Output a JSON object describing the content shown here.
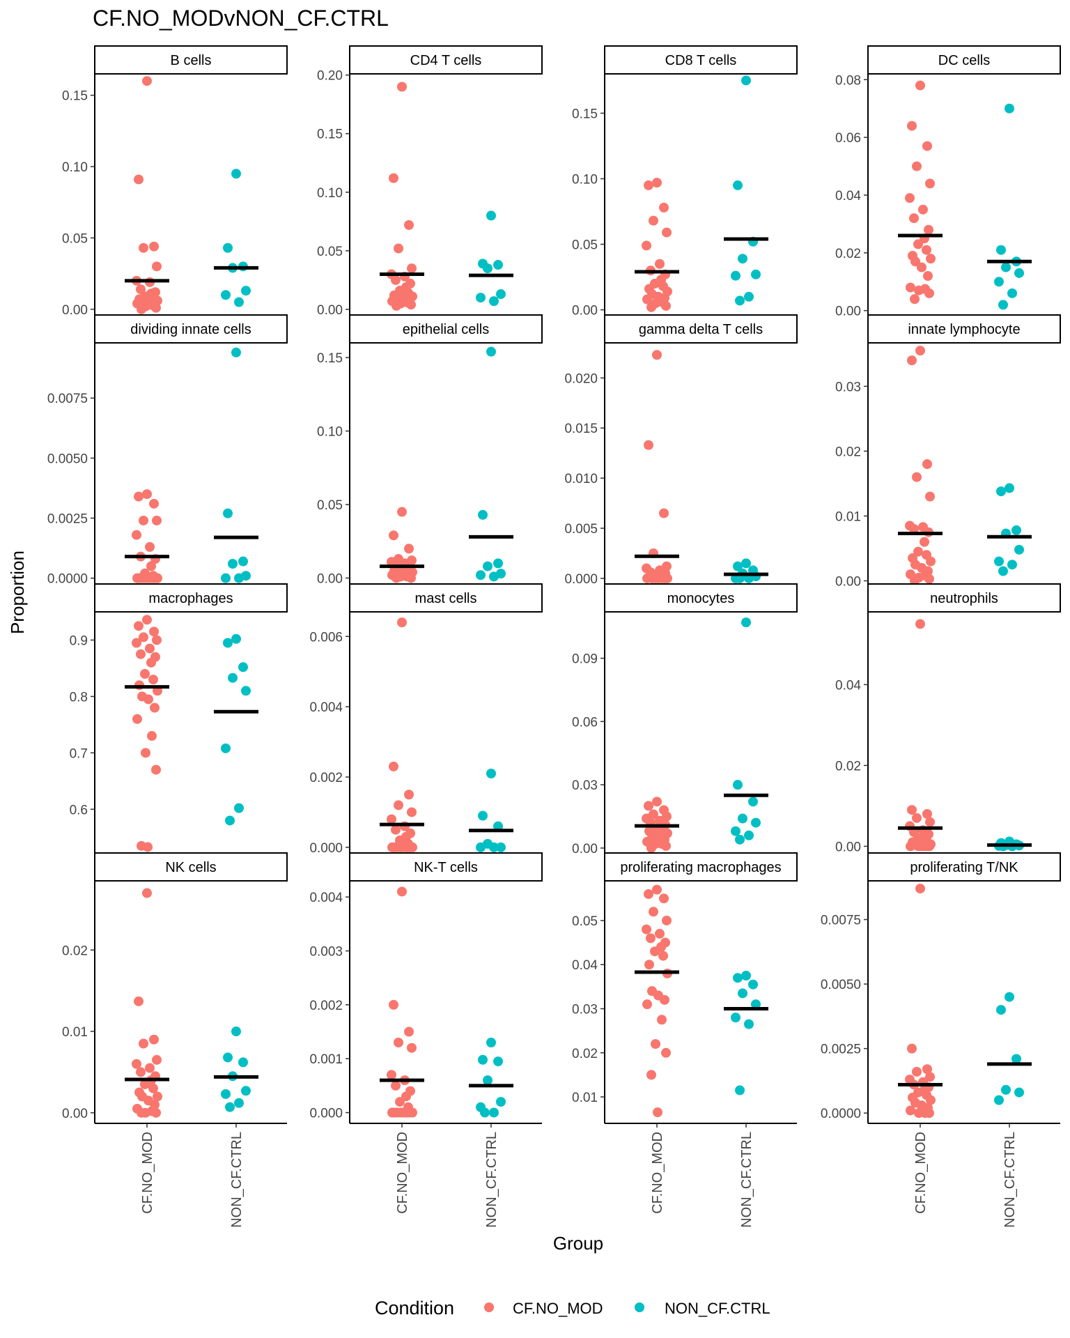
{
  "title": "CF.NO_MODvNON_CF.CTRL",
  "xlabel": "Group",
  "ylabel": "Proportion",
  "groups": [
    "CF.NO_MOD",
    "NON_CF.CTRL"
  ],
  "legend": {
    "title": "Condition",
    "entries": [
      {
        "label": "CF.NO_MOD",
        "color": "#F8766D"
      },
      {
        "label": "NON_CF.CTRL",
        "color": "#00BFC4"
      }
    ]
  },
  "colors": {
    "cf": "#F8766D",
    "ctrl": "#00BFC4",
    "median": "#000000"
  },
  "chart_data": [
    {
      "type": "scatter",
      "title": "B cells",
      "ylim": [
        -0.005,
        0.165
      ],
      "ticks": [
        0,
        0.05,
        0.1,
        0.15
      ],
      "tick_labels": [
        "0.00",
        "0.05",
        "0.10",
        "0.15"
      ],
      "cf": [
        0.16,
        0.091,
        0.044,
        0.043,
        0.03,
        0.02,
        0.019,
        0.014,
        0.012,
        0.011,
        0.009,
        0.008,
        0.007,
        0.006,
        0.006,
        0.005,
        0.004,
        0.004,
        0.003,
        0.002,
        0.001,
        0.0
      ],
      "ctrl": [
        0.095,
        0.043,
        0.03,
        0.029,
        0.013,
        0.01,
        0.005
      ],
      "median": [
        0.02,
        0.029
      ]
    },
    {
      "type": "scatter",
      "title": "CD4 T cells",
      "ylim": [
        -0.006,
        0.201
      ],
      "ticks": [
        0,
        0.05,
        0.1,
        0.15,
        0.2
      ],
      "tick_labels": [
        "0.00",
        "0.05",
        "0.10",
        "0.15",
        "0.20"
      ],
      "cf": [
        0.19,
        0.112,
        0.072,
        0.052,
        0.035,
        0.03,
        0.028,
        0.025,
        0.022,
        0.019,
        0.016,
        0.014,
        0.012,
        0.011,
        0.01,
        0.009,
        0.008,
        0.007,
        0.006,
        0.005,
        0.004,
        0.003
      ],
      "ctrl": [
        0.08,
        0.039,
        0.038,
        0.035,
        0.013,
        0.01,
        0.007
      ],
      "median": [
        0.03,
        0.029
      ]
    },
    {
      "type": "scatter",
      "title": "CD8 T cells",
      "ylim": [
        -0.005,
        0.18
      ],
      "ticks": [
        0,
        0.05,
        0.1,
        0.15
      ],
      "tick_labels": [
        "0.00",
        "0.05",
        "0.10",
        "0.15"
      ],
      "cf": [
        0.097,
        0.095,
        0.078,
        0.068,
        0.059,
        0.049,
        0.035,
        0.03,
        0.027,
        0.023,
        0.02,
        0.018,
        0.016,
        0.014,
        0.012,
        0.01,
        0.009,
        0.008,
        0.006,
        0.005,
        0.003,
        0.002
      ],
      "ctrl": [
        0.175,
        0.095,
        0.052,
        0.039,
        0.027,
        0.026,
        0.01,
        0.007
      ],
      "median": [
        0.029,
        0.054
      ]
    },
    {
      "type": "scatter",
      "title": "DC cells",
      "ylim": [
        -0.002,
        0.082
      ],
      "ticks": [
        0,
        0.02,
        0.04,
        0.06,
        0.08
      ],
      "tick_labels": [
        "0.00",
        "0.02",
        "0.04",
        "0.06",
        "0.08"
      ],
      "cf": [
        0.078,
        0.064,
        0.057,
        0.05,
        0.044,
        0.039,
        0.035,
        0.032,
        0.028,
        0.025,
        0.023,
        0.021,
        0.019,
        0.018,
        0.017,
        0.015,
        0.012,
        0.008,
        0.0075,
        0.007,
        0.006,
        0.004
      ],
      "ctrl": [
        0.07,
        0.021,
        0.017,
        0.015,
        0.013,
        0.01,
        0.006,
        0.002
      ],
      "median": [
        0.026,
        0.017
      ]
    },
    {
      "type": "scatter",
      "title": "dividing innate cells",
      "ylim": [
        -0.0003,
        0.0098
      ],
      "ticks": [
        0,
        0.0025,
        0.005,
        0.0075
      ],
      "tick_labels": [
        "0.0000",
        "0.0025",
        "0.0050",
        "0.0075"
      ],
      "cf": [
        0.0035,
        0.0034,
        0.0031,
        0.0024,
        0.0024,
        0.0018,
        0.0013,
        0.0009,
        0.0008,
        0.0005,
        0.0002,
        0.0001,
        0.0,
        0.0,
        0.0,
        0.0,
        0.0,
        0.0,
        0.0,
        0.0
      ],
      "ctrl": [
        0.0094,
        0.0027,
        0.0007,
        0.0006,
        0.0001,
        0.0,
        0.0
      ],
      "median": [
        0.0009,
        0.0017
      ]
    },
    {
      "type": "scatter",
      "title": "epithelial cells",
      "ylim": [
        -0.005,
        0.16
      ],
      "ticks": [
        0,
        0.05,
        0.1,
        0.15
      ],
      "tick_labels": [
        "0.00",
        "0.05",
        "0.10",
        "0.15"
      ],
      "cf": [
        0.045,
        0.029,
        0.02,
        0.013,
        0.012,
        0.011,
        0.01,
        0.009,
        0.008,
        0.007,
        0.006,
        0.005,
        0.005,
        0.004,
        0.003,
        0.003,
        0.002,
        0.002,
        0.001,
        0.001,
        0.0,
        0.0
      ],
      "ctrl": [
        0.154,
        0.043,
        0.01,
        0.008,
        0.003,
        0.002,
        0.001
      ],
      "median": [
        0.008,
        0.028
      ]
    },
    {
      "type": "scatter",
      "title": "gamma delta T cells",
      "ylim": [
        -0.0007,
        0.0235
      ],
      "ticks": [
        0,
        0.005,
        0.01,
        0.015,
        0.02
      ],
      "tick_labels": [
        "0.000",
        "0.005",
        "0.010",
        "0.015",
        "0.020"
      ],
      "cf": [
        0.0223,
        0.0133,
        0.0065,
        0.0025,
        0.0012,
        0.001,
        0.0008,
        0.0006,
        0.0005,
        0.0004,
        0.0003,
        0.0002,
        0.0001,
        0.0,
        0.0,
        0.0,
        0.0,
        0.0,
        0.0,
        0.0
      ],
      "ctrl": [
        0.0015,
        0.0012,
        0.0008,
        0.0005,
        0.0002,
        0.0,
        0.0,
        0.0
      ],
      "median": [
        0.0022,
        0.0004
      ]
    },
    {
      "type": "scatter",
      "title": "innate lymphocyte",
      "ylim": [
        -0.0007,
        0.0367
      ],
      "ticks": [
        0,
        0.01,
        0.02,
        0.03
      ],
      "tick_labels": [
        "0.00",
        "0.01",
        "0.02",
        "0.03"
      ],
      "cf": [
        0.0355,
        0.034,
        0.018,
        0.016,
        0.013,
        0.0085,
        0.0083,
        0.008,
        0.0075,
        0.006,
        0.0045,
        0.004,
        0.0035,
        0.003,
        0.0025,
        0.002,
        0.0015,
        0.001,
        0.0008,
        0.0005,
        0.0003,
        0.0
      ],
      "ctrl": [
        0.0143,
        0.0138,
        0.0078,
        0.0073,
        0.0048,
        0.003,
        0.0025,
        0.0015
      ],
      "median": [
        0.0073,
        0.0068
      ]
    },
    {
      "type": "scatter",
      "title": "macrophages",
      "ylim": [
        0.52,
        0.95
      ],
      "ticks": [
        0.6,
        0.7,
        0.8,
        0.9
      ],
      "tick_labels": [
        "0.6",
        "0.7",
        "0.8",
        "0.9"
      ],
      "cf": [
        0.936,
        0.925,
        0.915,
        0.905,
        0.9,
        0.895,
        0.885,
        0.875,
        0.87,
        0.86,
        0.84,
        0.83,
        0.82,
        0.81,
        0.8,
        0.795,
        0.78,
        0.76,
        0.73,
        0.7,
        0.67,
        0.535,
        0.533
      ],
      "ctrl": [
        0.902,
        0.895,
        0.852,
        0.833,
        0.81,
        0.708,
        0.602,
        0.58
      ],
      "median": [
        0.817,
        0.773
      ]
    },
    {
      "type": "scatter",
      "title": "mast cells",
      "ylim": [
        -0.0002,
        0.0067
      ],
      "ticks": [
        0,
        0.002,
        0.004,
        0.006
      ],
      "tick_labels": [
        "0.000",
        "0.002",
        "0.004",
        "0.006"
      ],
      "cf": [
        0.0064,
        0.0023,
        0.0015,
        0.0012,
        0.001,
        0.0008,
        0.0006,
        0.0005,
        0.0004,
        0.0003,
        0.0002,
        0.0001,
        0.0,
        0.0,
        0.0,
        0.0,
        0.0,
        0.0,
        0.0,
        0.0
      ],
      "ctrl": [
        0.0021,
        0.0009,
        0.0006,
        0.0001,
        0.0,
        0.0,
        0.0
      ],
      "median": [
        0.00065,
        0.00048
      ]
    },
    {
      "type": "scatter",
      "title": "monocytes",
      "ylim": [
        -0.003,
        0.112
      ],
      "ticks": [
        0,
        0.03,
        0.06,
        0.09
      ],
      "tick_labels": [
        "0.00",
        "0.03",
        "0.06",
        "0.09"
      ],
      "cf": [
        0.022,
        0.02,
        0.018,
        0.016,
        0.015,
        0.014,
        0.013,
        0.012,
        0.011,
        0.01,
        0.009,
        0.008,
        0.008,
        0.007,
        0.006,
        0.005,
        0.004,
        0.003,
        0.002,
        0.002,
        0.001,
        0.0
      ],
      "ctrl": [
        0.107,
        0.03,
        0.022,
        0.014,
        0.012,
        0.008,
        0.006,
        0.004
      ],
      "median": [
        0.0105,
        0.025
      ]
    },
    {
      "type": "scatter",
      "title": "neutrophils",
      "ylim": [
        -0.002,
        0.058
      ],
      "ticks": [
        0,
        0.02,
        0.04
      ],
      "tick_labels": [
        "0.00",
        "0.02",
        "0.04"
      ],
      "cf": [
        0.055,
        0.009,
        0.008,
        0.007,
        0.006,
        0.005,
        0.004,
        0.0035,
        0.003,
        0.0025,
        0.002,
        0.0015,
        0.001,
        0.0005,
        0.0003,
        0.0,
        0.0,
        0.0,
        0.0,
        0.0,
        0.0
      ],
      "ctrl": [
        0.0012,
        0.0008,
        0.0005,
        0.0003,
        0.0002,
        0.0001,
        0.0,
        0.0
      ],
      "median": [
        0.0045,
        0.0003
      ]
    },
    {
      "type": "scatter",
      "title": "NK cells",
      "ylim": [
        -0.0013,
        0.0285
      ],
      "ticks": [
        0,
        0.01,
        0.02
      ],
      "tick_labels": [
        "0.00",
        "0.01",
        "0.02"
      ],
      "cf": [
        0.027,
        0.0137,
        0.009,
        0.0085,
        0.0065,
        0.006,
        0.0055,
        0.005,
        0.0045,
        0.004,
        0.0035,
        0.003,
        0.0025,
        0.002,
        0.002,
        0.0015,
        0.001,
        0.0005,
        0.0002,
        0.0,
        0.0,
        0.0
      ],
      "ctrl": [
        0.01,
        0.0068,
        0.0062,
        0.0045,
        0.0027,
        0.0023,
        0.0012,
        0.0007
      ],
      "median": [
        0.0041,
        0.0044
      ]
    },
    {
      "type": "scatter",
      "title": "NK-T cells",
      "ylim": [
        -0.0002,
        0.0043
      ],
      "ticks": [
        0,
        0.001,
        0.002,
        0.003,
        0.004
      ],
      "tick_labels": [
        "0.000",
        "0.001",
        "0.002",
        "0.003",
        "0.004"
      ],
      "cf": [
        0.0041,
        0.002,
        0.0015,
        0.0013,
        0.0012,
        0.0007,
        0.0006,
        0.0005,
        0.0004,
        0.0003,
        0.0002,
        0.0001,
        0.0,
        0.0,
        0.0,
        0.0,
        0.0,
        0.0,
        0.0,
        0.0
      ],
      "ctrl": [
        0.0013,
        0.00098,
        0.00095,
        0.0006,
        0.0002,
        0.0001,
        0.0,
        0.0
      ],
      "median": [
        0.0006,
        0.0005
      ]
    },
    {
      "type": "scatter",
      "title": "proliferating macrophages",
      "ylim": [
        0.004,
        0.059
      ],
      "ticks": [
        0.01,
        0.02,
        0.03,
        0.04,
        0.05
      ],
      "tick_labels": [
        "0.01",
        "0.02",
        "0.03",
        "0.04",
        "0.05"
      ],
      "cf": [
        0.057,
        0.056,
        0.055,
        0.052,
        0.05,
        0.048,
        0.047,
        0.046,
        0.045,
        0.044,
        0.043,
        0.042,
        0.04,
        0.038,
        0.034,
        0.033,
        0.032,
        0.031,
        0.0275,
        0.022,
        0.02,
        0.015,
        0.0065
      ],
      "ctrl": [
        0.0375,
        0.037,
        0.0355,
        0.0335,
        0.031,
        0.028,
        0.0265,
        0.0115
      ],
      "median": [
        0.0383,
        0.03
      ]
    },
    {
      "type": "scatter",
      "title": "proliferating T/NK",
      "ylim": [
        -0.0004,
        0.009
      ],
      "ticks": [
        0,
        0.0025,
        0.005,
        0.0075
      ],
      "tick_labels": [
        "0.0000",
        "0.0025",
        "0.0050",
        "0.0075"
      ],
      "cf": [
        0.0087,
        0.0025,
        0.0017,
        0.0016,
        0.0014,
        0.0013,
        0.0012,
        0.0011,
        0.001,
        0.0009,
        0.0008,
        0.0007,
        0.0006,
        0.0005,
        0.0004,
        0.0003,
        0.0002,
        0.0001,
        0.0,
        0.0,
        0.0
      ],
      "ctrl": [
        0.0045,
        0.004,
        0.0021,
        0.0009,
        0.0008,
        0.0005
      ],
      "median": [
        0.0011,
        0.0019
      ]
    }
  ]
}
